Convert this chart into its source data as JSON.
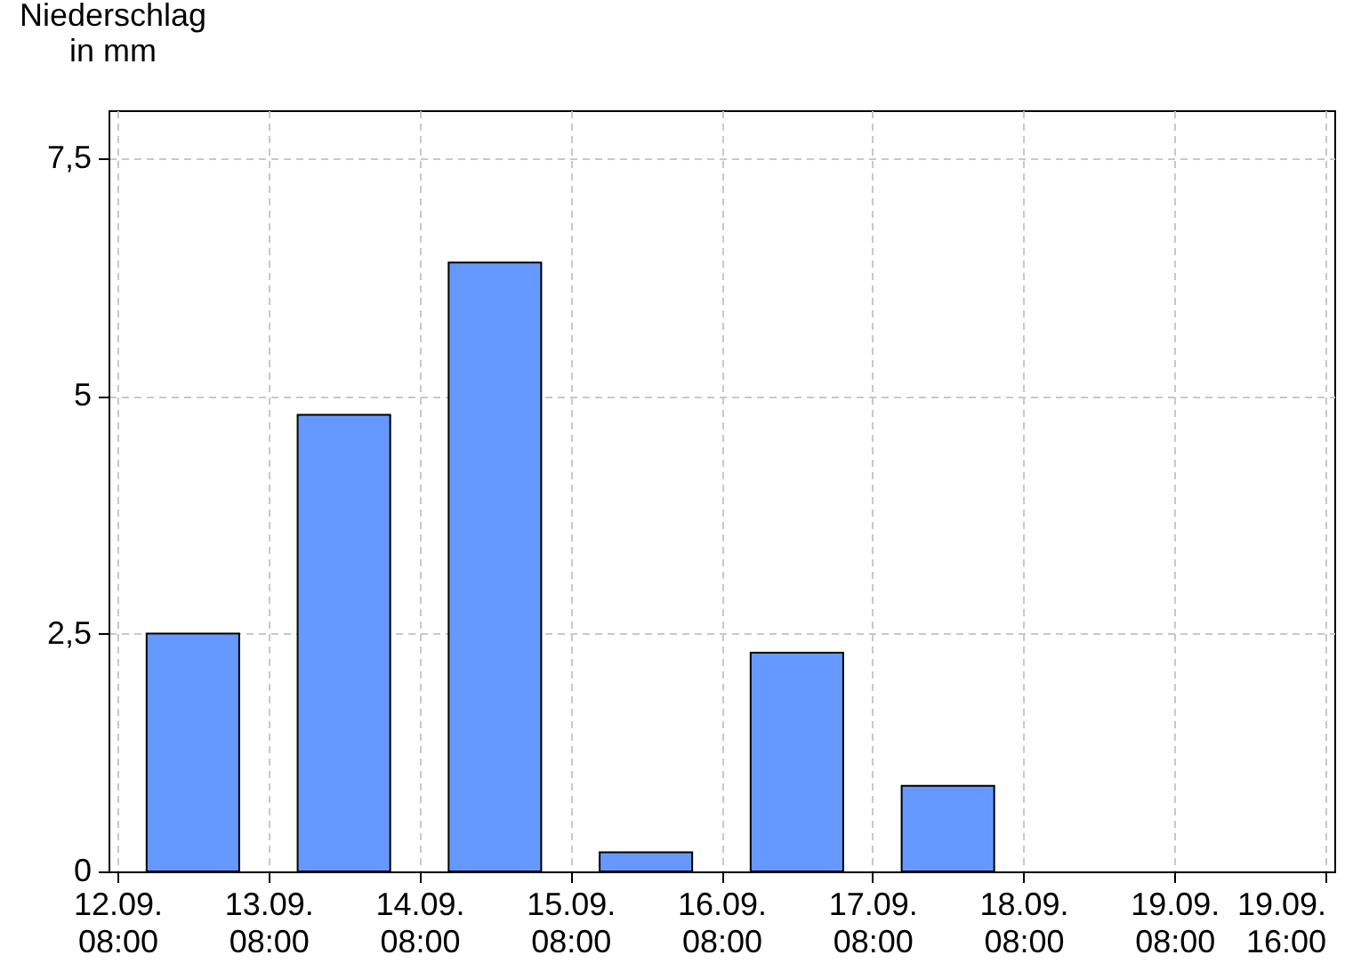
{
  "chart_data": {
    "type": "bar",
    "ylabel": "Niederschlag\nin mm",
    "x": [
      "--09-12T20:00",
      "--09-13T20:00",
      "--09-14T20:00",
      "--09-15T20:00",
      "--09-16T20:00",
      "--09-17T20:00"
    ],
    "values": [
      2.5,
      4.8,
      6.4,
      0.2,
      2.3,
      0.9
    ],
    "color": "#6699ff",
    "xlim": [
      "--09-12T08:00",
      "--09-20T08:00"
    ],
    "xticks": [
      {
        "value": "--09-12T08:00",
        "label": "12.09.\n08:00"
      },
      {
        "value": "--09-13T08:00",
        "label": "13.09.\n08:00"
      },
      {
        "value": "--09-14T08:00",
        "label": "14.09.\n08:00"
      },
      {
        "value": "--09-15T08:00",
        "label": "15.09.\n08:00"
      },
      {
        "value": "--09-16T08:00",
        "label": "16.09.\n08:00"
      },
      {
        "value": "--09-17T08:00",
        "label": "17.09.\n08:00"
      },
      {
        "value": "--09-18T08:00",
        "label": "18.09.\n08:00"
      },
      {
        "value": "--09-19T08:00",
        "label": "19.09.\n08:00"
      },
      {
        "value": "--09-20T08:00",
        "label": "19.09.\n16:00"
      }
    ],
    "ylim": [
      0,
      8
    ],
    "yticks": [
      {
        "value": 0,
        "label": "0"
      },
      {
        "value": 2.5,
        "label": "2,5"
      },
      {
        "value": 5,
        "label": "5"
      },
      {
        "value": 7.5,
        "label": "7,5"
      }
    ],
    "grid": true
  }
}
